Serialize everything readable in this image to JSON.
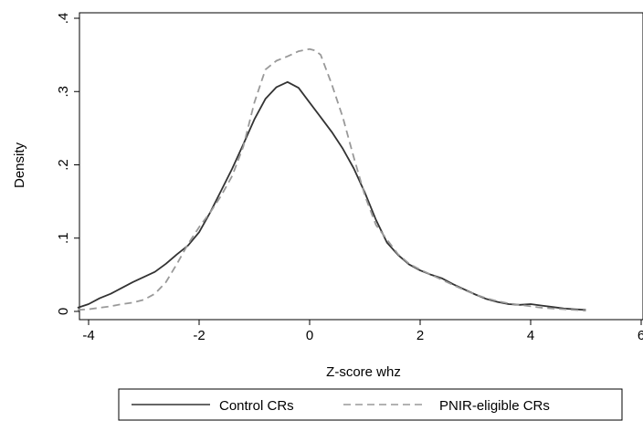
{
  "chart_data": {
    "type": "line",
    "xlabel": "Z-score whz",
    "ylabel": "Density",
    "xlim": [
      -4.3,
      6
    ],
    "ylim": [
      0,
      0.4
    ],
    "grid": false,
    "legend_position": "bottom",
    "x_ticks": [
      {
        "value": -4,
        "label": "-4"
      },
      {
        "value": -2,
        "label": "-2"
      },
      {
        "value": 0,
        "label": "0"
      },
      {
        "value": 2,
        "label": "2"
      },
      {
        "value": 4,
        "label": "4"
      },
      {
        "value": 6,
        "label": "6"
      }
    ],
    "y_ticks": [
      {
        "value": 0,
        "label": "0"
      },
      {
        "value": 0.1,
        "label": ".1"
      },
      {
        "value": 0.2,
        "label": ".2"
      },
      {
        "value": 0.3,
        "label": ".3"
      },
      {
        "value": 0.4,
        "label": ".4"
      }
    ],
    "series": [
      {
        "name": "Control CRs",
        "color": "#333333",
        "style": "solid",
        "x": [
          -4.2,
          -4.0,
          -3.8,
          -3.6,
          -3.4,
          -3.2,
          -3.0,
          -2.8,
          -2.6,
          -2.4,
          -2.2,
          -2.0,
          -1.8,
          -1.6,
          -1.4,
          -1.2,
          -1.0,
          -0.8,
          -0.6,
          -0.4,
          -0.2,
          0.0,
          0.2,
          0.4,
          0.6,
          0.8,
          1.0,
          1.2,
          1.4,
          1.6,
          1.8,
          2.0,
          2.2,
          2.4,
          2.6,
          2.8,
          3.0,
          3.2,
          3.4,
          3.6,
          3.8,
          4.0,
          4.2,
          4.4,
          4.6,
          4.8,
          5.0
        ],
        "y": [
          0.005,
          0.01,
          0.018,
          0.024,
          0.032,
          0.04,
          0.047,
          0.054,
          0.065,
          0.078,
          0.09,
          0.108,
          0.135,
          0.165,
          0.195,
          0.228,
          0.262,
          0.29,
          0.306,
          0.313,
          0.305,
          0.285,
          0.265,
          0.245,
          0.222,
          0.195,
          0.162,
          0.125,
          0.094,
          0.077,
          0.064,
          0.056,
          0.05,
          0.045,
          0.037,
          0.03,
          0.023,
          0.017,
          0.013,
          0.01,
          0.009,
          0.01,
          0.008,
          0.006,
          0.004,
          0.003,
          0.002
        ]
      },
      {
        "name": "PNIR-eligible CRs",
        "color": "#999999",
        "style": "dashed",
        "x": [
          -4.2,
          -4.0,
          -3.8,
          -3.6,
          -3.4,
          -3.2,
          -3.0,
          -2.8,
          -2.6,
          -2.4,
          -2.2,
          -2.0,
          -1.8,
          -1.6,
          -1.4,
          -1.2,
          -1.0,
          -0.8,
          -0.6,
          -0.4,
          -0.2,
          0.0,
          0.1,
          0.2,
          0.4,
          0.6,
          0.8,
          1.0,
          1.2,
          1.4,
          1.6,
          1.8,
          2.0,
          2.2,
          2.4,
          2.6,
          2.8,
          3.0,
          3.2,
          3.4,
          3.6,
          3.8,
          4.0,
          4.2,
          4.4,
          4.6,
          4.8,
          5.0
        ],
        "y": [
          0.002,
          0.003,
          0.005,
          0.007,
          0.01,
          0.012,
          0.016,
          0.024,
          0.04,
          0.065,
          0.092,
          0.115,
          0.135,
          0.158,
          0.185,
          0.225,
          0.285,
          0.33,
          0.342,
          0.348,
          0.355,
          0.358,
          0.356,
          0.35,
          0.31,
          0.265,
          0.21,
          0.158,
          0.118,
          0.098,
          0.078,
          0.065,
          0.057,
          0.05,
          0.043,
          0.036,
          0.029,
          0.023,
          0.018,
          0.014,
          0.011,
          0.009,
          0.007,
          0.005,
          0.004,
          0.003,
          0.002,
          0.001
        ]
      }
    ]
  }
}
